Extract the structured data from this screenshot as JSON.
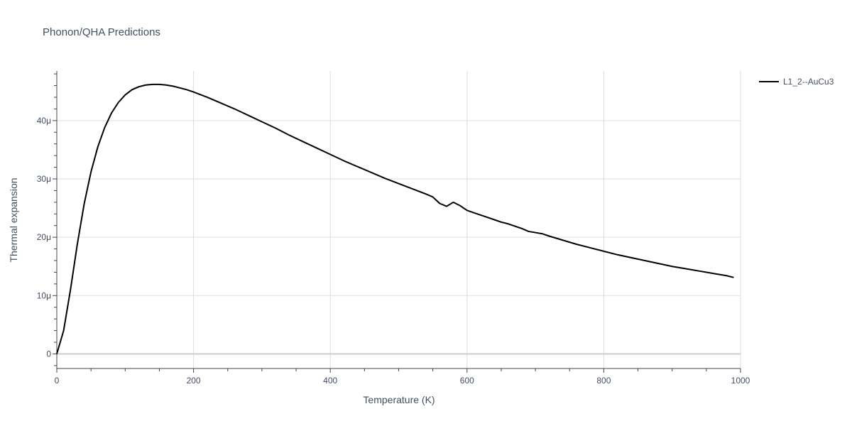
{
  "chart_data": {
    "type": "line",
    "title": "Phonon/QHA Predictions",
    "xlabel": "Temperature (K)",
    "ylabel": "Thermal expansion",
    "xlim": [
      0,
      1000
    ],
    "ylim": [
      -2.5e-06,
      4.85e-05
    ],
    "grid": true,
    "legend_position": "top-right outside",
    "x_ticks": [
      {
        "value": 0,
        "label": "0"
      },
      {
        "value": 200,
        "label": "200"
      },
      {
        "value": 400,
        "label": "400"
      },
      {
        "value": 600,
        "label": "600"
      },
      {
        "value": 800,
        "label": "800"
      },
      {
        "value": 1000,
        "label": "1000"
      }
    ],
    "y_ticks": [
      {
        "value": 0,
        "label": "0"
      },
      {
        "value": 1e-05,
        "label": "10μ"
      },
      {
        "value": 2e-05,
        "label": "20μ"
      },
      {
        "value": 3e-05,
        "label": "30μ"
      },
      {
        "value": 4e-05,
        "label": "40μ"
      }
    ],
    "series": [
      {
        "name": "L1_2--AuCu3",
        "color": "#000000",
        "x": [
          0,
          10,
          20,
          30,
          40,
          50,
          60,
          70,
          80,
          90,
          100,
          110,
          120,
          130,
          140,
          150,
          160,
          170,
          180,
          190,
          200,
          220,
          240,
          260,
          280,
          300,
          320,
          340,
          360,
          380,
          400,
          420,
          440,
          460,
          480,
          500,
          520,
          540,
          550,
          560,
          570,
          580,
          590,
          600,
          610,
          620,
          630,
          640,
          650,
          660,
          670,
          680,
          690,
          700,
          710,
          720,
          740,
          760,
          780,
          800,
          820,
          840,
          860,
          880,
          900,
          920,
          940,
          960,
          980,
          990
        ],
        "y": [
          0,
          4e-06,
          1.1e-05,
          1.88e-05,
          2.57e-05,
          3.12e-05,
          3.55e-05,
          3.88e-05,
          4.13e-05,
          4.31e-05,
          4.44e-05,
          4.53e-05,
          4.58e-05,
          4.61e-05,
          4.62e-05,
          4.62e-05,
          4.61e-05,
          4.59e-05,
          4.56e-05,
          4.53e-05,
          4.49e-05,
          4.4e-05,
          4.3e-05,
          4.2e-05,
          4.09e-05,
          3.98e-05,
          3.87e-05,
          3.75e-05,
          3.64e-05,
          3.53e-05,
          3.42e-05,
          3.31e-05,
          3.21e-05,
          3.11e-05,
          3.01e-05,
          2.92e-05,
          2.83e-05,
          2.74e-05,
          2.69e-05,
          2.58e-05,
          2.53e-05,
          2.6e-05,
          2.54e-05,
          2.46e-05,
          2.42e-05,
          2.38e-05,
          2.34e-05,
          2.3e-05,
          2.26e-05,
          2.23e-05,
          2.19e-05,
          2.15e-05,
          2.1e-05,
          2.08e-05,
          2.06e-05,
          2.02e-05,
          1.95e-05,
          1.88e-05,
          1.82e-05,
          1.76e-05,
          1.7e-05,
          1.65e-05,
          1.6e-05,
          1.55e-05,
          1.5e-05,
          1.46e-05,
          1.42e-05,
          1.38e-05,
          1.34e-05,
          1.31e-05
        ]
      }
    ]
  }
}
